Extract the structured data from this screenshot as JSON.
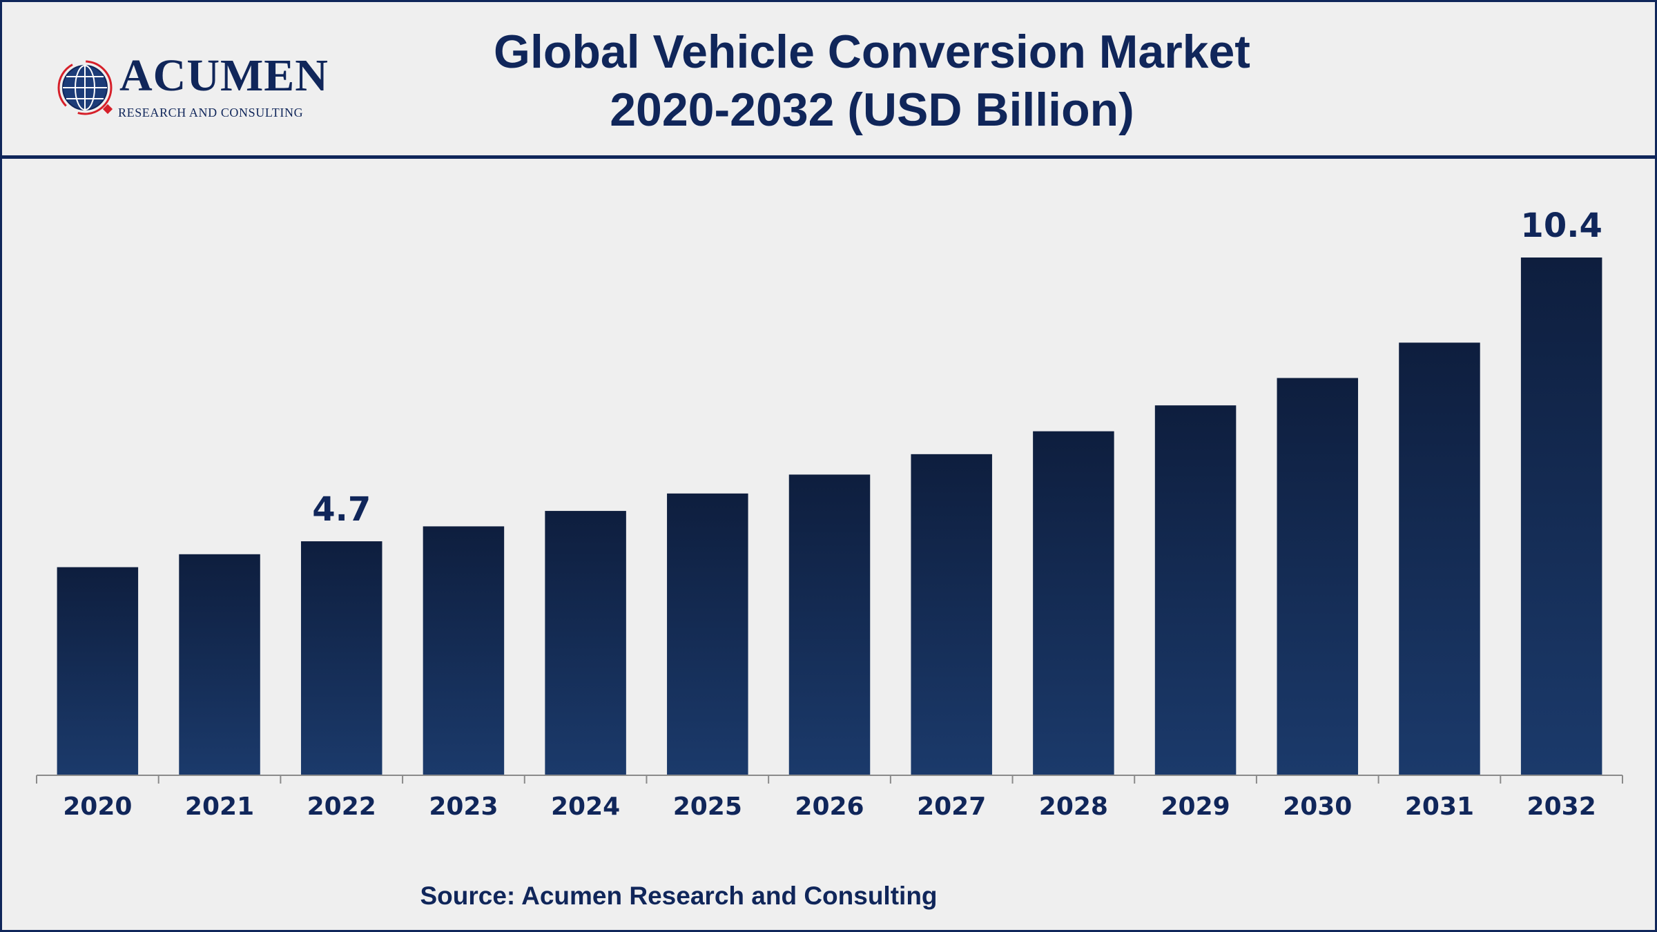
{
  "header": {
    "title_line1": "Global Vehicle Conversion Market",
    "title_line2": "2020-2032 (USD Billion)"
  },
  "logo": {
    "name": "ACUMEN",
    "subtitle": "RESEARCH AND CONSULTING",
    "icon": "globe-icon"
  },
  "source": "Source: Acumen Research and Consulting",
  "colors": {
    "navy": "#10265a",
    "bar_top": "#0e1e3e",
    "bar_bottom": "#1b3a6b",
    "background": "#efefef",
    "accent_red": "#d6202a"
  },
  "chart_data": {
    "type": "bar",
    "title": "Global Vehicle Conversion Market 2020-2032 (USD Billion)",
    "categories": [
      "2020",
      "2021",
      "2022",
      "2023",
      "2024",
      "2025",
      "2026",
      "2027",
      "2028",
      "2029",
      "2030",
      "2031",
      "2032"
    ],
    "values": [
      4.18,
      4.44,
      4.7,
      5.0,
      5.31,
      5.66,
      6.04,
      6.45,
      6.91,
      7.43,
      7.98,
      8.69,
      10.4
    ],
    "data_labels": [
      {
        "category": "2022",
        "text": "4.7"
      },
      {
        "category": "2032",
        "text": "10.4"
      }
    ],
    "ylim": [
      0,
      10.4
    ],
    "grid": false,
    "legend": "none"
  }
}
